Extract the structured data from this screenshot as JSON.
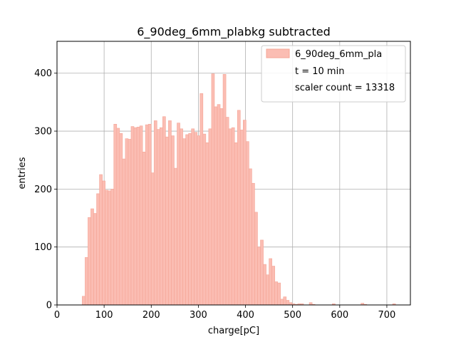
{
  "chart_data": {
    "type": "bar",
    "title": "6_90deg_6mm_plabkg subtracted",
    "xlabel": "charge[pC]",
    "ylabel": "entries",
    "xlim": [
      0,
      750
    ],
    "ylim": [
      0,
      455
    ],
    "xticks": [
      0,
      100,
      200,
      300,
      400,
      500,
      600,
      700
    ],
    "yticks": [
      0,
      100,
      200,
      300,
      400
    ],
    "grid": true,
    "legend_position": "top-right",
    "colors": {
      "fill": "#fbbdb3",
      "edge": "#f4a596",
      "grid": "#b0b0b0"
    },
    "legend": [
      {
        "label": "6_90deg_6mm_pla",
        "swatch": true
      },
      {
        "label": "t = 10 min",
        "swatch": false
      },
      {
        "label": "scaler count = 13318",
        "swatch": false
      }
    ],
    "series": [
      {
        "name": "6_90deg_6mm_pla",
        "bin_width": 6.1,
        "bin_start": 53.5,
        "values": [
          15,
          82,
          151,
          166,
          158,
          192,
          225,
          214,
          198,
          197,
          200,
          312,
          305,
          296,
          252,
          287,
          286,
          308,
          306,
          307,
          309,
          264,
          311,
          312,
          228,
          318,
          303,
          306,
          325,
          290,
          318,
          292,
          236,
          314,
          304,
          287,
          294,
          296,
          304,
          298,
          292,
          365,
          295,
          280,
          304,
          399,
          342,
          346,
          339,
          398,
          324,
          304,
          306,
          280,
          336,
          302,
          319,
          282,
          235,
          210,
          160,
          100,
          112,
          70,
          52,
          80,
          67,
          40,
          38,
          10,
          14,
          8,
          4,
          2,
          1,
          2,
          2,
          0,
          0,
          4,
          1,
          0,
          0,
          0,
          0,
          0,
          0,
          2,
          0,
          0,
          0,
          0,
          0,
          0,
          0,
          0,
          0,
          3,
          1,
          0,
          0,
          0,
          0,
          0,
          0,
          0,
          0,
          0,
          2,
          0,
          0,
          0,
          0,
          0,
          0,
          0,
          0,
          4,
          1,
          0,
          0,
          0,
          0,
          2,
          0,
          0,
          0,
          2,
          0,
          0,
          0,
          0,
          0,
          0,
          2,
          0,
          0,
          0,
          0,
          2,
          1,
          0,
          0,
          0,
          0,
          3
        ]
      }
    ]
  }
}
